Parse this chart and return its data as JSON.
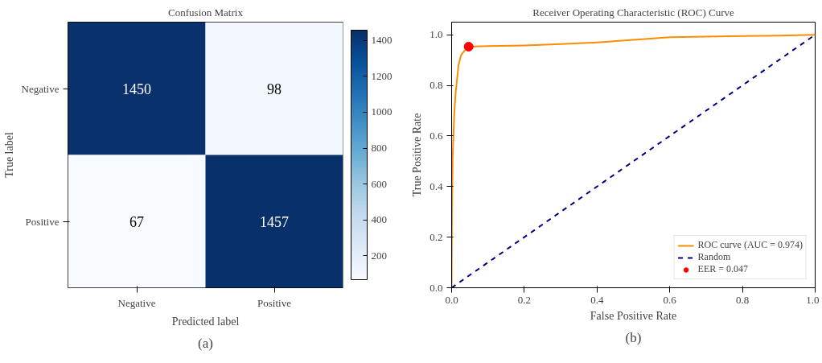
{
  "chart_data": [
    {
      "type": "heatmap",
      "title": "Confusion Matrix",
      "xlabel": "Predicted label",
      "ylabel": "True label",
      "categories": [
        "Negative",
        "Positive"
      ],
      "y_categories": [
        "Negative",
        "Positive"
      ],
      "cells": [
        [
          1450,
          98
        ],
        [
          67,
          1457
        ]
      ],
      "clim": [
        67,
        1457
      ],
      "cticks": [
        200,
        400,
        600,
        800,
        1000,
        1200,
        1400
      ],
      "data_labels": true,
      "annotations": [
        "(a)"
      ]
    },
    {
      "type": "line",
      "title": "Receiver Operating Characteristic (ROC) Curve",
      "xlabel": "False Positive Rate",
      "ylabel": "True Positive Rate",
      "xlim": [
        0,
        1
      ],
      "ylim": [
        0,
        1.05
      ],
      "xticks": [
        {
          "value": 0,
          "label": "0.0"
        },
        0.2,
        0.4,
        0.6,
        0.8,
        {
          "value": 1,
          "label": "1.0"
        }
      ],
      "yticks": [
        {
          "value": 0,
          "label": "0.0"
        },
        0.2,
        0.4,
        0.6,
        0.8,
        {
          "value": 1,
          "label": "1.0"
        }
      ],
      "grid": false,
      "legend": "bottom right",
      "annotations": [
        "(b)"
      ],
      "series": [
        {
          "name": "ROC curve (AUC = 0.974)",
          "type": "line",
          "color": "#ff8c00",
          "line_style": "solid",
          "x": [
            0,
            0.001,
            0.003,
            0.007,
            0.011,
            0.019,
            0.026,
            0.037,
            0.047,
            0.1,
            0.2,
            0.3,
            0.4,
            0.5,
            0.6,
            0.7,
            0.8,
            0.9,
            1.0
          ],
          "values": [
            0,
            0.28,
            0.52,
            0.68,
            0.77,
            0.88,
            0.92,
            0.94,
            0.953,
            0.955,
            0.958,
            0.963,
            0.97,
            0.98,
            0.99,
            0.993,
            0.995,
            0.997,
            1.0
          ]
        },
        {
          "name": "Random",
          "type": "line",
          "color": "#000080",
          "line_style": "dashed",
          "x": [
            0,
            1
          ],
          "values": [
            0,
            1
          ]
        },
        {
          "name": "EER = 0.047",
          "type": "scatter",
          "color": "#ff0000",
          "marker": "circle",
          "x": [
            0.047
          ],
          "values": [
            0.953
          ]
        }
      ]
    }
  ]
}
